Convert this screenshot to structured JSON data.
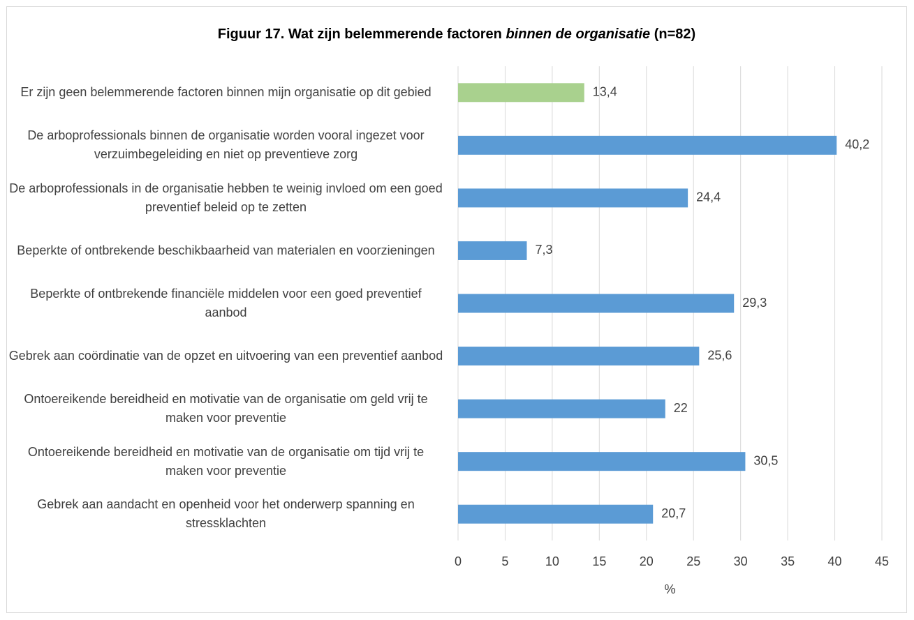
{
  "chart_data": {
    "type": "bar",
    "orientation": "horizontal",
    "title": [
      {
        "text": "Figuur 17. Wat zijn belemmerende factoren ",
        "italic": false
      },
      {
        "text": "binnen de organisatie",
        "italic": true
      },
      {
        "text": " (n=82)",
        "italic": false
      }
    ],
    "categories": [
      "Er zijn geen belemmerende factoren binnen mijn organisatie op dit gebied",
      "De arboprofessionals binnen de organisatie worden vooral ingezet voor verzuimbegeleiding en niet op preventieve zorg",
      "De arboprofessionals in de organisatie hebben te weinig invloed om een goed preventief beleid op te zetten",
      "Beperkte of ontbrekende beschikbaarheid van materialen en voorzieningen",
      "Beperkte of ontbrekende financiële middelen voor een goed preventief aanbod",
      "Gebrek aan coördinatie van de opzet en uitvoering van een preventief aanbod",
      "Ontoereikende bereidheid en motivatie van de organisatie om geld vrij te maken voor preventie",
      "Ontoereikende bereidheid en motivatie van de organisatie om tijd vrij te maken voor preventie",
      "Gebrek aan aandacht en openheid voor het onderwerp spanning en stressklachten"
    ],
    "values": [
      13.4,
      40.2,
      24.4,
      7.3,
      29.3,
      25.6,
      22,
      30.5,
      20.7
    ],
    "value_labels": [
      "13,4",
      "40,2",
      "24,4",
      "7,3",
      "29,3",
      "25,6",
      "22",
      "30,5",
      "20,7"
    ],
    "colors": [
      "#a9d18e",
      "#5b9bd5",
      "#5b9bd5",
      "#5b9bd5",
      "#5b9bd5",
      "#5b9bd5",
      "#5b9bd5",
      "#5b9bd5",
      "#5b9bd5"
    ],
    "xlabel": "%",
    "xlim": [
      0,
      45
    ],
    "xticks": [
      0,
      5,
      10,
      15,
      20,
      25,
      30,
      35,
      40,
      45
    ],
    "grid": true
  }
}
